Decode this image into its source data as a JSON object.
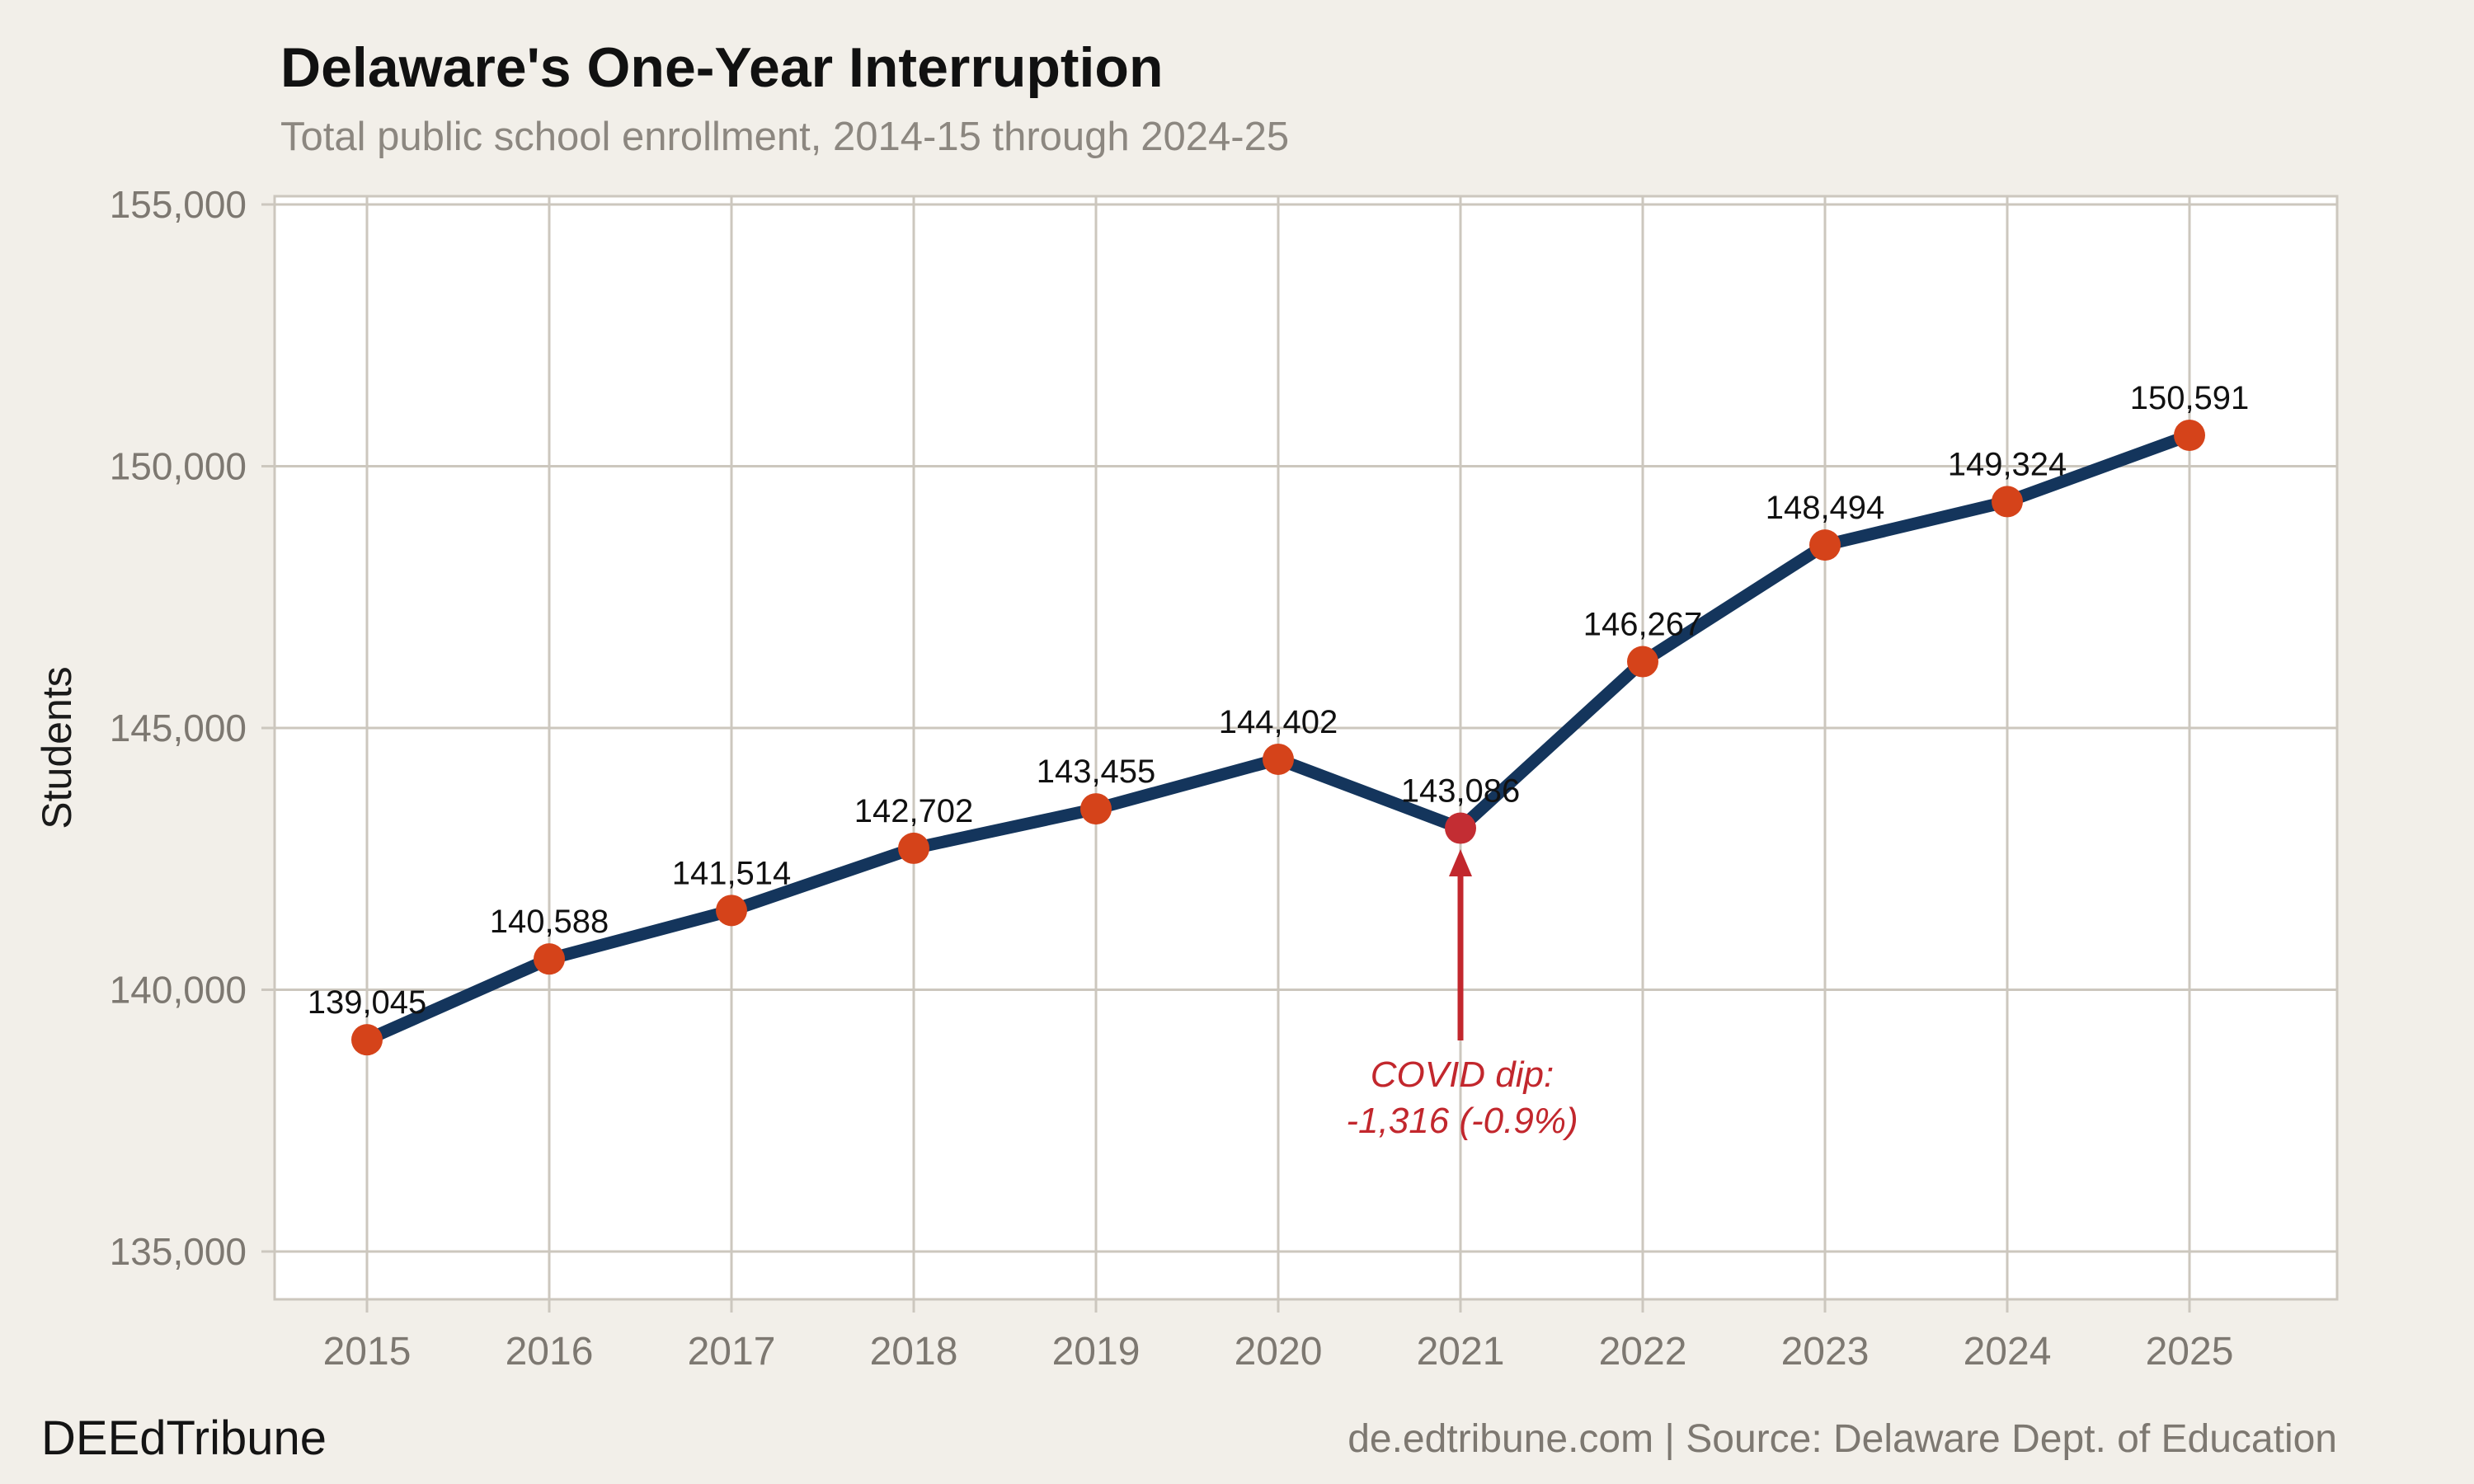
{
  "chart_data": {
    "type": "line",
    "title": "Delaware's One-Year Interruption",
    "subtitle": "Total public school enrollment, 2014-15 through 2024-25",
    "ylabel": "Students",
    "xlabel": "",
    "x": [
      2015,
      2016,
      2017,
      2018,
      2019,
      2020,
      2021,
      2022,
      2023,
      2024,
      2025
    ],
    "series": [
      {
        "name": "Total public school enrollment",
        "values": [
          139045,
          140588,
          141514,
          142702,
          143455,
          144402,
          143086,
          146267,
          148494,
          149324,
          150591
        ]
      }
    ],
    "yticks": [
      135000,
      140000,
      145000,
      150000,
      155000
    ],
    "ylim": [
      134100,
      155160
    ],
    "grid": true,
    "legend": "none",
    "point_labels": true,
    "highlight_x": 2021,
    "annotation": {
      "year": 2021,
      "line1": "COVID dip:",
      "line2": "-1,316 (-0.9%)"
    },
    "colors": {
      "background": "#f2efe9",
      "plot_bg": "#ffffff",
      "grid": "#ccc7be",
      "line": "#14355c",
      "marker": "#d5431a",
      "highlight": "#c32d33",
      "annotation": "#c2272d",
      "axis_text": "#7d7871",
      "point_label_text": "#111111"
    }
  },
  "branding": {
    "logo_text": "DEEdTribune",
    "source_text": "de.edtribune.com | Source: Delaware Dept. of Education"
  }
}
